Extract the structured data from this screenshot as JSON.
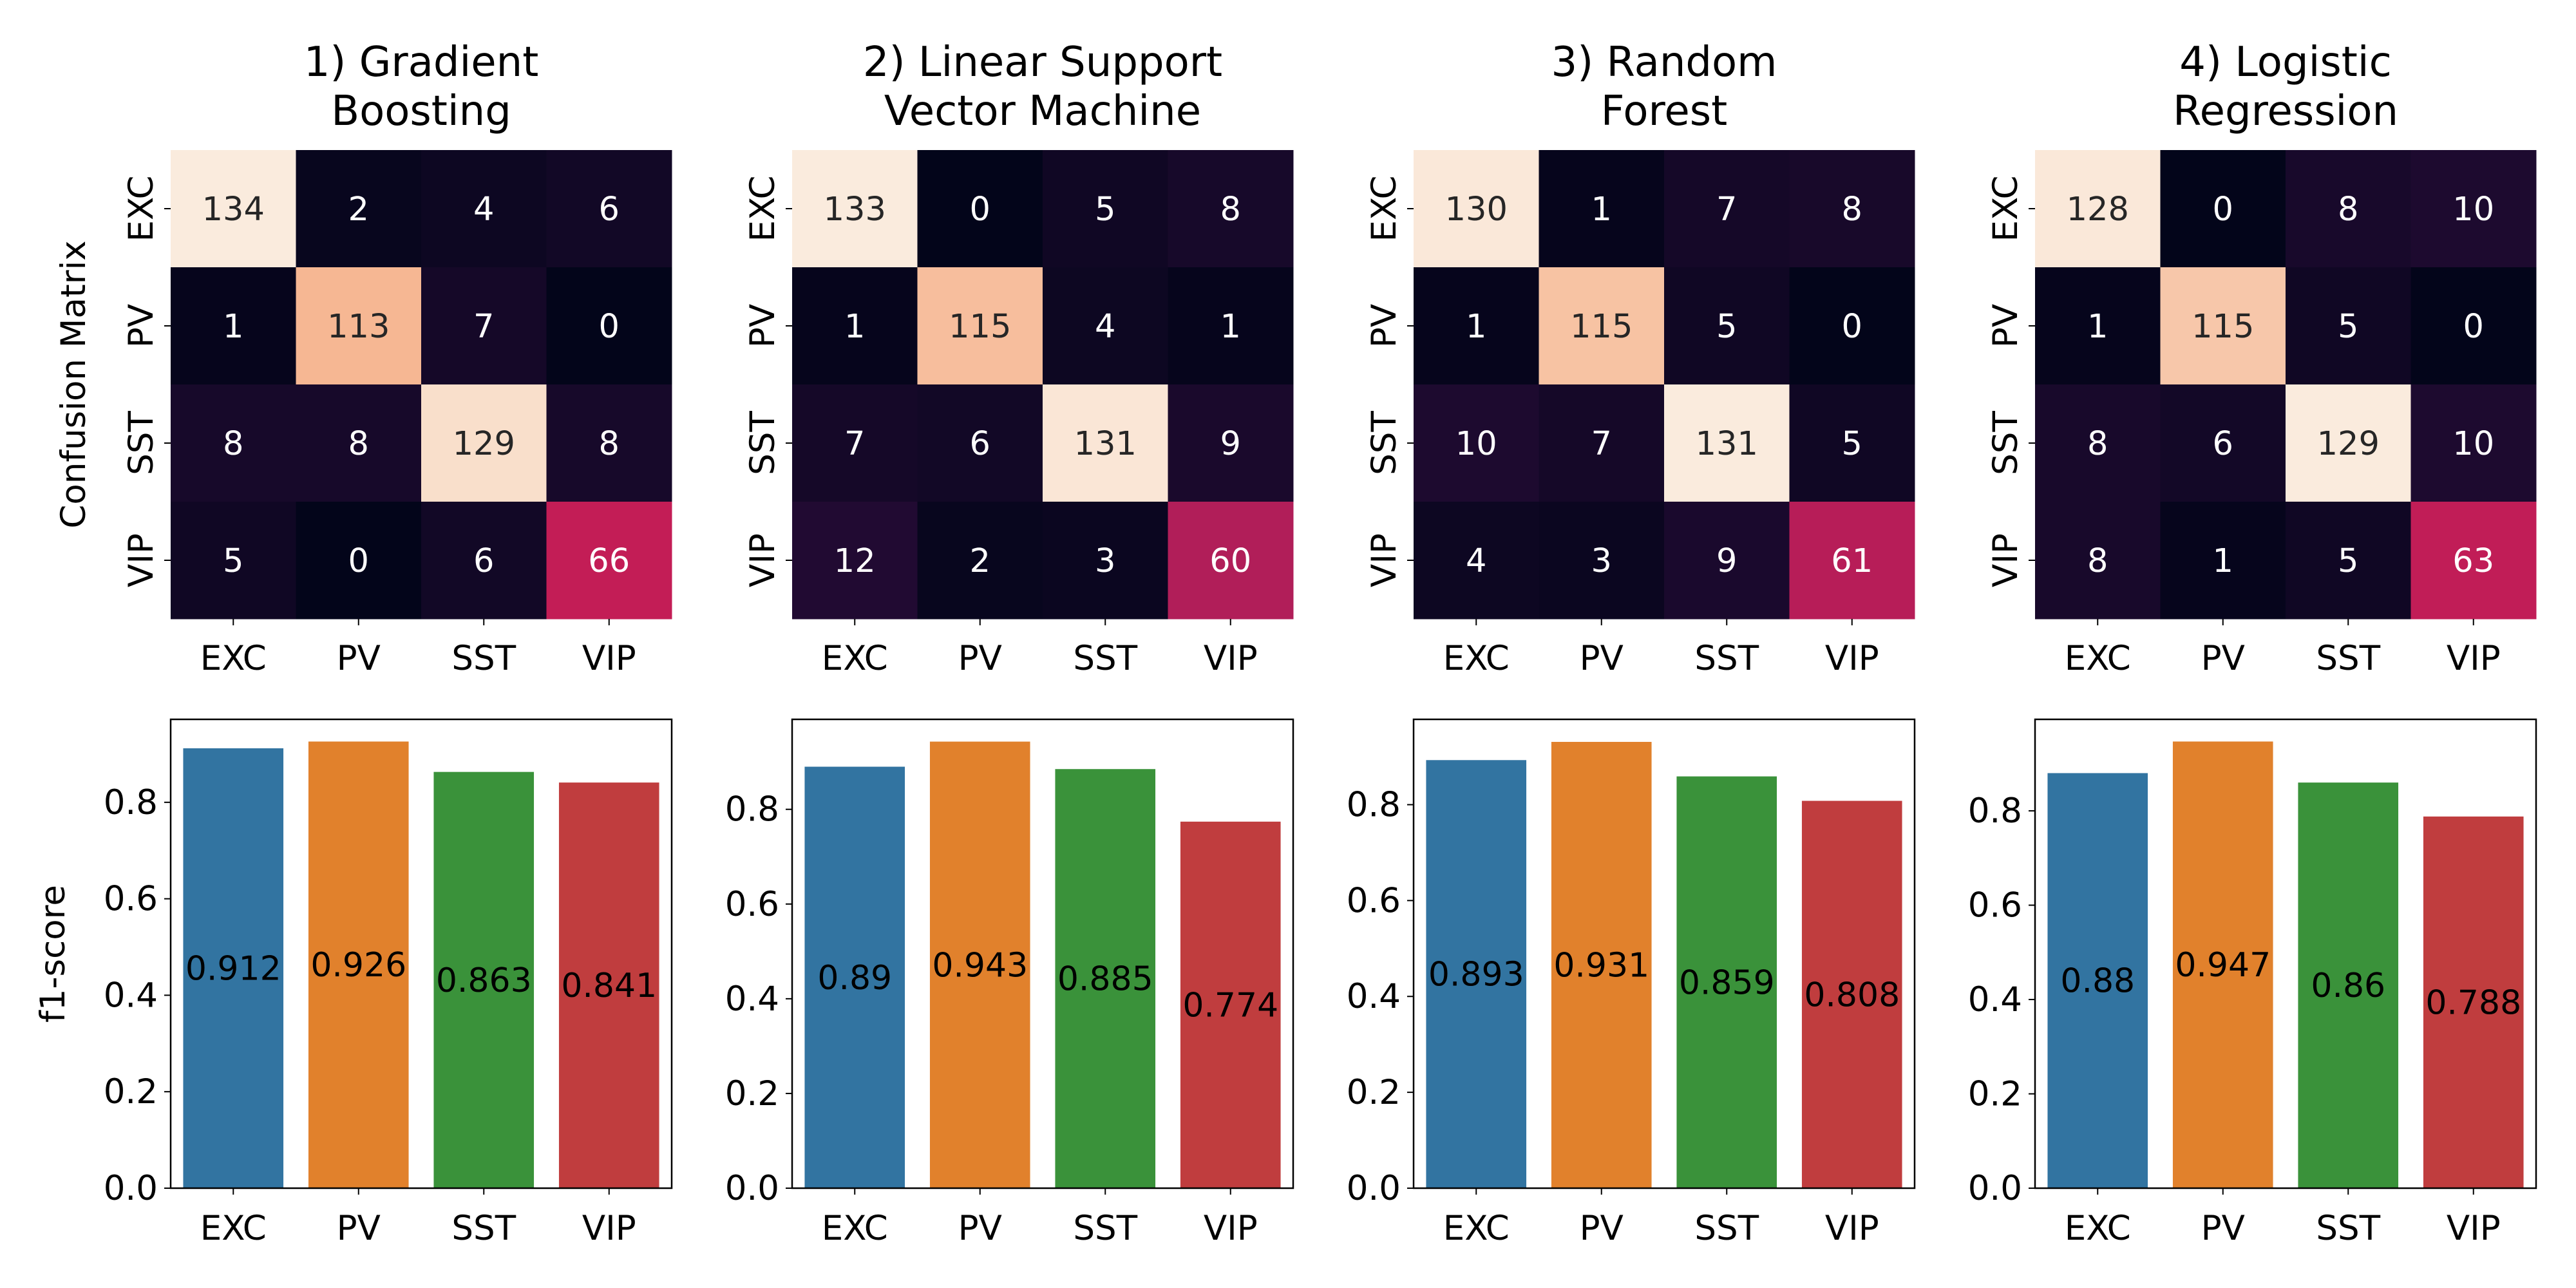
{
  "figure": {
    "classes": [
      "EXC",
      "PV",
      "SST",
      "VIP"
    ],
    "cm_ylabel": "Confusion Matrix",
    "f1_ylabel": "f1-score",
    "bar_colors": [
      "#3274a1",
      "#e1812c",
      "#3a923a",
      "#c03d3e"
    ],
    "heatmap_colormap": [
      "#03051a",
      "#3b0f47",
      "#7e1f5f",
      "#c61d56",
      "#f0603f",
      "#f6b48e",
      "#faebdd"
    ]
  },
  "chart_data": [
    {
      "type": "heatmap",
      "title_lines": [
        "1) Gradient",
        "Boosting"
      ],
      "categories": [
        "EXC",
        "PV",
        "SST",
        "VIP"
      ],
      "matrix": [
        [
          134,
          2,
          4,
          6
        ],
        [
          1,
          113,
          7,
          0
        ],
        [
          8,
          8,
          129,
          8
        ],
        [
          5,
          0,
          6,
          66
        ]
      ],
      "vmin": 0,
      "vmax": 134
    },
    {
      "type": "heatmap",
      "title_lines": [
        "2) Linear Support",
        "Vector Machine"
      ],
      "categories": [
        "EXC",
        "PV",
        "SST",
        "VIP"
      ],
      "matrix": [
        [
          133,
          0,
          5,
          8
        ],
        [
          1,
          115,
          4,
          1
        ],
        [
          7,
          6,
          131,
          9
        ],
        [
          12,
          2,
          3,
          60
        ]
      ],
      "vmin": 0,
      "vmax": 133
    },
    {
      "type": "heatmap",
      "title_lines": [
        "3) Random",
        "Forest"
      ],
      "categories": [
        "EXC",
        "PV",
        "SST",
        "VIP"
      ],
      "matrix": [
        [
          130,
          1,
          7,
          8
        ],
        [
          1,
          115,
          5,
          0
        ],
        [
          10,
          7,
          131,
          5
        ],
        [
          4,
          3,
          9,
          61
        ]
      ],
      "vmin": 0,
      "vmax": 131
    },
    {
      "type": "heatmap",
      "title_lines": [
        "4) Logistic",
        "Regression"
      ],
      "categories": [
        "EXC",
        "PV",
        "SST",
        "VIP"
      ],
      "matrix": [
        [
          128,
          0,
          8,
          10
        ],
        [
          1,
          115,
          5,
          0
        ],
        [
          8,
          6,
          129,
          10
        ],
        [
          8,
          1,
          5,
          63
        ]
      ],
      "vmin": 0,
      "vmax": 129
    },
    {
      "type": "bar",
      "categories": [
        "EXC",
        "PV",
        "SST",
        "VIP"
      ],
      "values": [
        0.912,
        0.926,
        0.863,
        0.841
      ],
      "labels": [
        "0.912",
        "0.926",
        "0.863",
        "0.841"
      ],
      "ylabel": "f1-score",
      "ylim": [
        0,
        0.972
      ],
      "yticks": [
        "0.0",
        "0.2",
        "0.4",
        "0.6",
        "0.8"
      ]
    },
    {
      "type": "bar",
      "categories": [
        "EXC",
        "PV",
        "SST",
        "VIP"
      ],
      "values": [
        0.89,
        0.943,
        0.885,
        0.774
      ],
      "labels": [
        "0.89",
        "0.943",
        "0.885",
        "0.774"
      ],
      "ylabel": "",
      "ylim": [
        0,
        0.99
      ],
      "yticks": [
        "0.0",
        "0.2",
        "0.4",
        "0.6",
        "0.8"
      ]
    },
    {
      "type": "bar",
      "categories": [
        "EXC",
        "PV",
        "SST",
        "VIP"
      ],
      "values": [
        0.893,
        0.931,
        0.859,
        0.808
      ],
      "labels": [
        "0.893",
        "0.931",
        "0.859",
        "0.808"
      ],
      "ylabel": "",
      "ylim": [
        0,
        0.978
      ],
      "yticks": [
        "0.0",
        "0.2",
        "0.4",
        "0.6",
        "0.8"
      ]
    },
    {
      "type": "bar",
      "categories": [
        "EXC",
        "PV",
        "SST",
        "VIP"
      ],
      "values": [
        0.88,
        0.947,
        0.86,
        0.788
      ],
      "labels": [
        "0.88",
        "0.947",
        "0.86",
        "0.788"
      ],
      "ylabel": "",
      "ylim": [
        0,
        0.994
      ],
      "yticks": [
        "0.0",
        "0.2",
        "0.4",
        "0.6",
        "0.8"
      ]
    }
  ]
}
